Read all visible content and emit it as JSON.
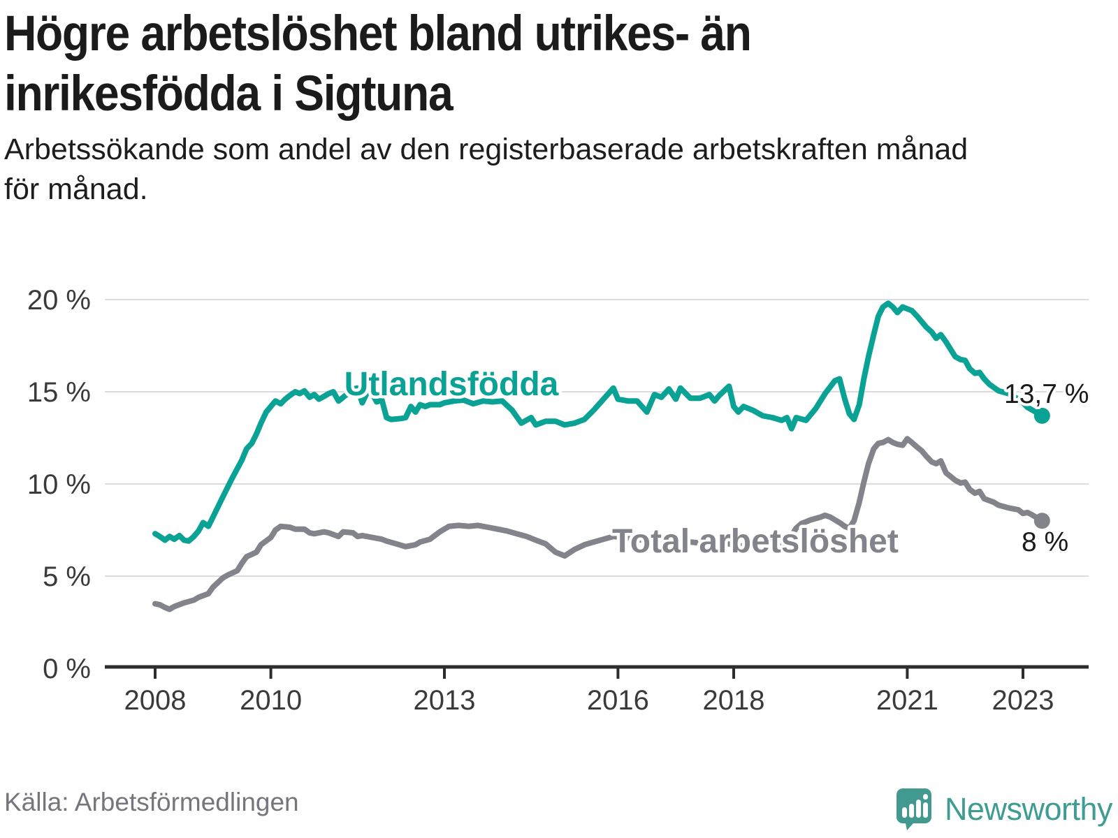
{
  "title": {
    "line1": "Högre arbetslöshet bland utrikes- än",
    "line2": "inrikesfödda i Sigtuna"
  },
  "subtitle": {
    "line1": "Arbetssökande som andel av den registerbaserade arbetskraften månad",
    "line2": "för månad."
  },
  "source": "Källa: Arbetsförmedlingen",
  "brand": {
    "name": "Newsworthy",
    "color": "#3f9c93",
    "icon": "speech-bubble-bar-chart-icon",
    "icon_color": "#41998f"
  },
  "colors": {
    "teal_series": "#0aa294",
    "gray_series": "#83838b",
    "value_label": "#1a1a1a",
    "axis_label": "#3a3a3a",
    "gridline": "#dcdcde",
    "axis_line": "#2d2d2d",
    "background": "#ffffff"
  },
  "chart_data": {
    "type": "line",
    "title": "Högre arbetslöshet bland utrikes- än inrikesfödda i Sigtuna",
    "subtitle": "Arbetssökande som andel av den registerbaserade arbetskraften månad för månad.",
    "xlabel": "",
    "ylabel": "",
    "grid": true,
    "legend_position": "inline-labels",
    "xlim": [
      2007.85,
      2023.65
    ],
    "ylim": [
      0,
      20.5
    ],
    "x_ticks": [
      2008,
      2010,
      2013,
      2016,
      2018,
      2021,
      2023
    ],
    "x_tick_labels": [
      "2008",
      "2010",
      "2013",
      "2016",
      "2018",
      "2021",
      "2023"
    ],
    "y_ticks": [
      0,
      5,
      10,
      15,
      20
    ],
    "y_tick_labels": [
      "0 %",
      "5 %",
      "10 %",
      "15 %",
      "20 %"
    ],
    "x_unit": "year (monthly data, Jan 2008 – May 2023)",
    "y_unit": "percent of registered labour force",
    "series": [
      {
        "name": "Utlandsfödda",
        "color": "#0aa294",
        "end_label": "13,7 %",
        "end_value": 13.7,
        "points": [
          [
            2008.0,
            7.3
          ],
          [
            2008.08,
            7.15
          ],
          [
            2008.17,
            6.95
          ],
          [
            2008.25,
            7.15
          ],
          [
            2008.33,
            7.0
          ],
          [
            2008.42,
            7.2
          ],
          [
            2008.5,
            6.95
          ],
          [
            2008.58,
            6.9
          ],
          [
            2008.67,
            7.15
          ],
          [
            2008.75,
            7.45
          ],
          [
            2008.83,
            7.9
          ],
          [
            2008.92,
            7.7
          ],
          [
            2009.0,
            8.2
          ],
          [
            2009.17,
            9.3
          ],
          [
            2009.33,
            10.3
          ],
          [
            2009.5,
            11.3
          ],
          [
            2009.58,
            11.9
          ],
          [
            2009.67,
            12.2
          ],
          [
            2009.75,
            12.7
          ],
          [
            2009.83,
            13.3
          ],
          [
            2009.92,
            13.9
          ],
          [
            2010.0,
            14.2
          ],
          [
            2010.08,
            14.5
          ],
          [
            2010.17,
            14.35
          ],
          [
            2010.25,
            14.6
          ],
          [
            2010.33,
            14.8
          ],
          [
            2010.42,
            15.0
          ],
          [
            2010.5,
            14.9
          ],
          [
            2010.58,
            15.05
          ],
          [
            2010.67,
            14.7
          ],
          [
            2010.75,
            14.85
          ],
          [
            2010.83,
            14.6
          ],
          [
            2010.92,
            14.75
          ],
          [
            2011.0,
            14.9
          ],
          [
            2011.08,
            15.0
          ],
          [
            2011.17,
            14.5
          ],
          [
            2011.25,
            14.7
          ],
          [
            2011.33,
            14.9
          ],
          [
            2011.42,
            15.15
          ],
          [
            2011.5,
            15.2
          ],
          [
            2011.58,
            14.4
          ],
          [
            2011.67,
            15.0
          ],
          [
            2011.75,
            14.9
          ],
          [
            2011.83,
            14.45
          ],
          [
            2011.92,
            14.55
          ],
          [
            2012.0,
            13.6
          ],
          [
            2012.08,
            13.5
          ],
          [
            2012.25,
            13.55
          ],
          [
            2012.33,
            13.6
          ],
          [
            2012.42,
            14.2
          ],
          [
            2012.5,
            13.9
          ],
          [
            2012.58,
            14.3
          ],
          [
            2012.67,
            14.2
          ],
          [
            2012.75,
            14.3
          ],
          [
            2012.92,
            14.3
          ],
          [
            2013.0,
            14.4
          ],
          [
            2013.17,
            14.5
          ],
          [
            2013.33,
            14.55
          ],
          [
            2013.5,
            14.35
          ],
          [
            2013.67,
            14.5
          ],
          [
            2013.83,
            14.45
          ],
          [
            2014.0,
            14.5
          ],
          [
            2014.17,
            14.0
          ],
          [
            2014.33,
            13.3
          ],
          [
            2014.5,
            13.6
          ],
          [
            2014.58,
            13.2
          ],
          [
            2014.75,
            13.4
          ],
          [
            2014.92,
            13.4
          ],
          [
            2015.08,
            13.2
          ],
          [
            2015.25,
            13.3
          ],
          [
            2015.42,
            13.5
          ],
          [
            2015.58,
            14.0
          ],
          [
            2015.75,
            14.6
          ],
          [
            2015.92,
            15.2
          ],
          [
            2016.0,
            14.6
          ],
          [
            2016.17,
            14.5
          ],
          [
            2016.33,
            14.5
          ],
          [
            2016.5,
            13.9
          ],
          [
            2016.63,
            14.85
          ],
          [
            2016.75,
            14.7
          ],
          [
            2016.88,
            15.15
          ],
          [
            2017.0,
            14.6
          ],
          [
            2017.08,
            15.2
          ],
          [
            2017.25,
            14.65
          ],
          [
            2017.42,
            14.65
          ],
          [
            2017.58,
            14.85
          ],
          [
            2017.67,
            14.5
          ],
          [
            2017.75,
            14.8
          ],
          [
            2017.92,
            15.3
          ],
          [
            2018.0,
            14.2
          ],
          [
            2018.08,
            13.9
          ],
          [
            2018.17,
            14.2
          ],
          [
            2018.33,
            14.0
          ],
          [
            2018.5,
            13.7
          ],
          [
            2018.67,
            13.6
          ],
          [
            2018.83,
            13.45
          ],
          [
            2018.92,
            13.6
          ],
          [
            2019.0,
            13.0
          ],
          [
            2019.08,
            13.6
          ],
          [
            2019.25,
            13.45
          ],
          [
            2019.42,
            14.1
          ],
          [
            2019.58,
            14.9
          ],
          [
            2019.75,
            15.6
          ],
          [
            2019.83,
            15.7
          ],
          [
            2019.92,
            14.6
          ],
          [
            2020.0,
            13.8
          ],
          [
            2020.08,
            13.5
          ],
          [
            2020.17,
            14.3
          ],
          [
            2020.25,
            15.7
          ],
          [
            2020.33,
            16.9
          ],
          [
            2020.42,
            18.1
          ],
          [
            2020.5,
            19.1
          ],
          [
            2020.58,
            19.6
          ],
          [
            2020.67,
            19.8
          ],
          [
            2020.75,
            19.6
          ],
          [
            2020.83,
            19.3
          ],
          [
            2020.92,
            19.6
          ],
          [
            2021.0,
            19.5
          ],
          [
            2021.08,
            19.4
          ],
          [
            2021.17,
            19.1
          ],
          [
            2021.25,
            18.8
          ],
          [
            2021.33,
            18.5
          ],
          [
            2021.42,
            18.25
          ],
          [
            2021.5,
            17.9
          ],
          [
            2021.58,
            18.1
          ],
          [
            2021.67,
            17.7
          ],
          [
            2021.75,
            17.3
          ],
          [
            2021.83,
            16.9
          ],
          [
            2021.92,
            16.75
          ],
          [
            2022.0,
            16.7
          ],
          [
            2022.08,
            16.25
          ],
          [
            2022.17,
            16.0
          ],
          [
            2022.25,
            16.05
          ],
          [
            2022.33,
            15.7
          ],
          [
            2022.42,
            15.4
          ],
          [
            2022.58,
            15.05
          ],
          [
            2022.75,
            14.9
          ],
          [
            2022.92,
            14.6
          ],
          [
            2023.0,
            14.4
          ],
          [
            2023.08,
            14.15
          ],
          [
            2023.25,
            13.85
          ],
          [
            2023.33,
            13.7
          ]
        ]
      },
      {
        "name": "Total arbetslöshet",
        "color": "#83838b",
        "end_label": "8 %",
        "end_value": 8.0,
        "points": [
          [
            2008.0,
            3.5
          ],
          [
            2008.08,
            3.45
          ],
          [
            2008.17,
            3.3
          ],
          [
            2008.25,
            3.2
          ],
          [
            2008.33,
            3.35
          ],
          [
            2008.5,
            3.55
          ],
          [
            2008.67,
            3.7
          ],
          [
            2008.75,
            3.85
          ],
          [
            2008.92,
            4.05
          ],
          [
            2009.0,
            4.4
          ],
          [
            2009.17,
            4.9
          ],
          [
            2009.25,
            5.05
          ],
          [
            2009.42,
            5.3
          ],
          [
            2009.5,
            5.7
          ],
          [
            2009.58,
            6.05
          ],
          [
            2009.75,
            6.3
          ],
          [
            2009.83,
            6.7
          ],
          [
            2010.0,
            7.1
          ],
          [
            2010.08,
            7.5
          ],
          [
            2010.17,
            7.7
          ],
          [
            2010.33,
            7.65
          ],
          [
            2010.42,
            7.55
          ],
          [
            2010.58,
            7.55
          ],
          [
            2010.67,
            7.35
          ],
          [
            2010.75,
            7.3
          ],
          [
            2010.92,
            7.4
          ],
          [
            2011.0,
            7.35
          ],
          [
            2011.17,
            7.15
          ],
          [
            2011.25,
            7.4
          ],
          [
            2011.42,
            7.35
          ],
          [
            2011.5,
            7.15
          ],
          [
            2011.58,
            7.2
          ],
          [
            2011.75,
            7.1
          ],
          [
            2011.92,
            7.0
          ],
          [
            2012.0,
            6.9
          ],
          [
            2012.17,
            6.75
          ],
          [
            2012.33,
            6.6
          ],
          [
            2012.5,
            6.7
          ],
          [
            2012.58,
            6.85
          ],
          [
            2012.75,
            7.0
          ],
          [
            2012.92,
            7.4
          ],
          [
            2013.08,
            7.7
          ],
          [
            2013.25,
            7.75
          ],
          [
            2013.42,
            7.7
          ],
          [
            2013.58,
            7.75
          ],
          [
            2013.75,
            7.65
          ],
          [
            2013.92,
            7.55
          ],
          [
            2014.08,
            7.45
          ],
          [
            2014.25,
            7.3
          ],
          [
            2014.42,
            7.15
          ],
          [
            2014.58,
            6.95
          ],
          [
            2014.75,
            6.75
          ],
          [
            2014.92,
            6.3
          ],
          [
            2015.08,
            6.1
          ],
          [
            2015.25,
            6.45
          ],
          [
            2015.42,
            6.7
          ],
          [
            2015.58,
            6.85
          ],
          [
            2015.75,
            7.0
          ],
          [
            2015.92,
            7.15
          ],
          [
            2016.08,
            7.1
          ],
          [
            2016.25,
            7.05
          ],
          [
            2016.42,
            6.95
          ],
          [
            2016.58,
            6.9
          ],
          [
            2016.75,
            6.9
          ],
          [
            2016.92,
            6.95
          ],
          [
            2017.08,
            6.9
          ],
          [
            2017.25,
            6.85
          ],
          [
            2017.42,
            6.8
          ],
          [
            2017.58,
            6.85
          ],
          [
            2017.75,
            6.8
          ],
          [
            2017.92,
            6.75
          ],
          [
            2018.08,
            6.65
          ],
          [
            2018.25,
            6.6
          ],
          [
            2018.42,
            6.55
          ],
          [
            2018.58,
            6.5
          ],
          [
            2018.75,
            6.6
          ],
          [
            2018.92,
            6.8
          ],
          [
            2019.0,
            7.2
          ],
          [
            2019.08,
            7.6
          ],
          [
            2019.17,
            7.85
          ],
          [
            2019.33,
            8.05
          ],
          [
            2019.5,
            8.2
          ],
          [
            2019.58,
            8.3
          ],
          [
            2019.67,
            8.2
          ],
          [
            2019.83,
            7.9
          ],
          [
            2019.92,
            7.7
          ],
          [
            2020.0,
            7.6
          ],
          [
            2020.08,
            8.0
          ],
          [
            2020.17,
            9.0
          ],
          [
            2020.25,
            10.1
          ],
          [
            2020.33,
            11.1
          ],
          [
            2020.42,
            11.9
          ],
          [
            2020.5,
            12.2
          ],
          [
            2020.58,
            12.25
          ],
          [
            2020.67,
            12.4
          ],
          [
            2020.75,
            12.25
          ],
          [
            2020.83,
            12.15
          ],
          [
            2020.92,
            12.1
          ],
          [
            2021.0,
            12.45
          ],
          [
            2021.08,
            12.25
          ],
          [
            2021.17,
            12.0
          ],
          [
            2021.25,
            11.8
          ],
          [
            2021.33,
            11.5
          ],
          [
            2021.42,
            11.2
          ],
          [
            2021.5,
            11.1
          ],
          [
            2021.58,
            11.25
          ],
          [
            2021.67,
            10.6
          ],
          [
            2021.75,
            10.4
          ],
          [
            2021.83,
            10.2
          ],
          [
            2021.92,
            10.05
          ],
          [
            2022.0,
            10.1
          ],
          [
            2022.08,
            9.7
          ],
          [
            2022.17,
            9.5
          ],
          [
            2022.25,
            9.6
          ],
          [
            2022.33,
            9.2
          ],
          [
            2022.5,
            9.0
          ],
          [
            2022.58,
            8.85
          ],
          [
            2022.75,
            8.7
          ],
          [
            2022.92,
            8.6
          ],
          [
            2023.0,
            8.4
          ],
          [
            2023.08,
            8.45
          ],
          [
            2023.17,
            8.3
          ],
          [
            2023.25,
            8.15
          ],
          [
            2023.33,
            8.0
          ]
        ]
      }
    ]
  }
}
